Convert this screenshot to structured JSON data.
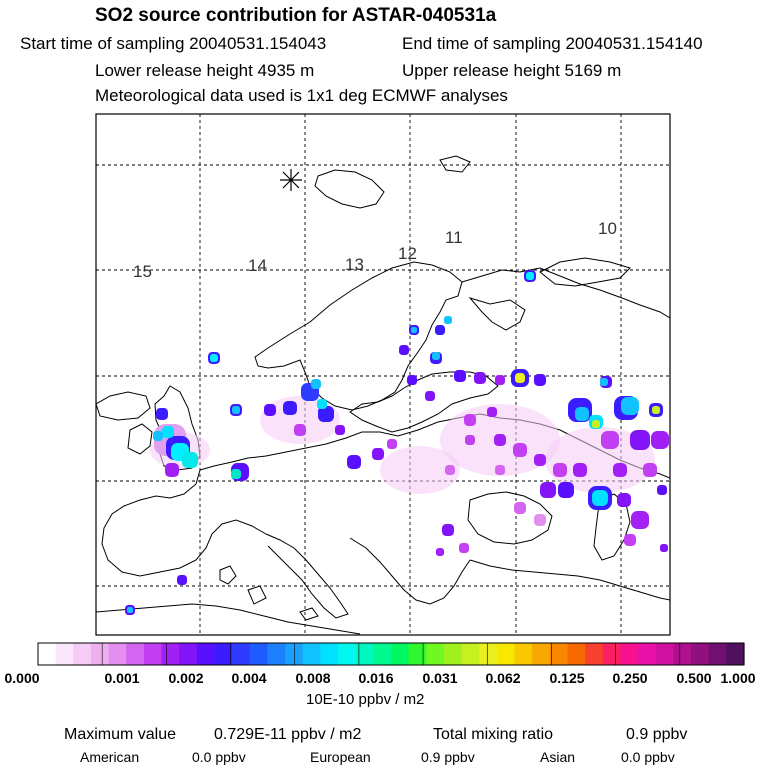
{
  "header": {
    "title": "SO2 source contribution for ASTAR-040531a",
    "start_time": "Start time of sampling 20040531.154043",
    "end_time": "End time of sampling 20040531.154140",
    "lower_height": "Lower release height 4935 m",
    "upper_height": "Upper release height 5169 m",
    "meteo": "Meteorological data used is 1x1 deg ECMWF analyses"
  },
  "map": {
    "trajectory_labels": [
      "15",
      "14",
      "13",
      "12",
      "11",
      "10"
    ],
    "release_marker": "asterisk-marker"
  },
  "colorbar": {
    "tick_labels": [
      "0.000",
      "0.001",
      "0.002",
      "0.004",
      "0.008",
      "0.016",
      "0.031",
      "0.062",
      "0.125",
      "0.250",
      "0.500",
      "1.000"
    ],
    "units": "10E-10 ppbv / m2",
    "colors": [
      "#ffffff",
      "#fbe6fb",
      "#f5ccf5",
      "#eeb0f0",
      "#e38ff0",
      "#d465f0",
      "#c23ff2",
      "#a21ff5",
      "#8314f7",
      "#5a0fff",
      "#3b1cff",
      "#2d3cff",
      "#1f5cff",
      "#1e80ff",
      "#1aa0ff",
      "#12c2ff",
      "#00e0ff",
      "#00f8f0",
      "#00f8c0",
      "#00f890",
      "#00f860",
      "#30f830",
      "#70f820",
      "#a0f020",
      "#c8f020",
      "#e8f020",
      "#f8e800",
      "#f8c800",
      "#f8a800",
      "#f88800",
      "#f86800",
      "#f84030",
      "#f82060",
      "#f81090",
      "#e810a8",
      "#d010a0",
      "#b01090",
      "#901080",
      "#701070",
      "#501060"
    ]
  },
  "footer": {
    "max_label": "Maximum value",
    "max_value": "0.729E-11 ppbv / m2",
    "total_label": "Total mixing ratio",
    "total_value": "0.9 ppbv",
    "american_label": "American",
    "american_value": "0.0 ppbv",
    "european_label": "European",
    "european_value": "0.9 ppbv",
    "asian_label": "Asian",
    "asian_value": "0.0 ppbv"
  }
}
